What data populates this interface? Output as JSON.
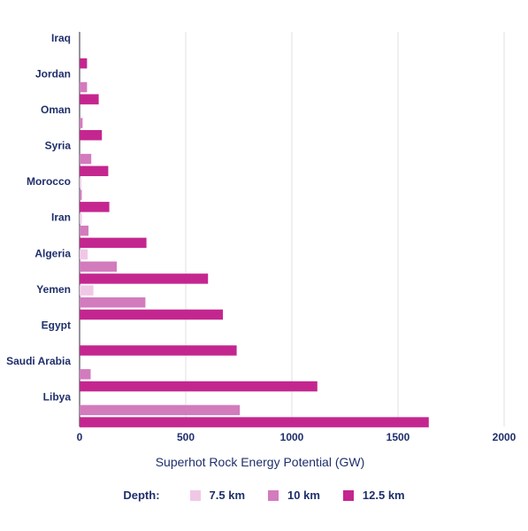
{
  "chart_data": {
    "type": "bar",
    "orientation": "horizontal",
    "categories": [
      "Iraq",
      "Jordan",
      "Oman",
      "Syria",
      "Morocco",
      "Iran",
      "Algeria",
      "Yemen",
      "Egypt",
      "Saudi Arabia",
      "Libya"
    ],
    "series": [
      {
        "name": "7.5 km",
        "color": "#f0c8e6",
        "values": [
          0,
          0,
          0,
          0,
          8,
          10,
          38,
          65,
          0,
          0,
          0
        ]
      },
      {
        "name": "10 km",
        "color": "#d27bbd",
        "values": [
          0,
          35,
          14,
          55,
          10,
          42,
          175,
          310,
          0,
          52,
          755
        ]
      },
      {
        "name": "12.5 km",
        "color": "#c4268f",
        "values": [
          35,
          90,
          105,
          135,
          140,
          315,
          605,
          675,
          740,
          1120,
          1645
        ]
      }
    ],
    "xlabel": "Superhot Rock Energy Potential (GW)",
    "xlim": [
      0,
      2000
    ],
    "xticks": [
      0,
      500,
      1000,
      1500,
      2000
    ],
    "grid": "vertical",
    "legend": {
      "title": "Depth:",
      "placement": "bottom"
    }
  }
}
